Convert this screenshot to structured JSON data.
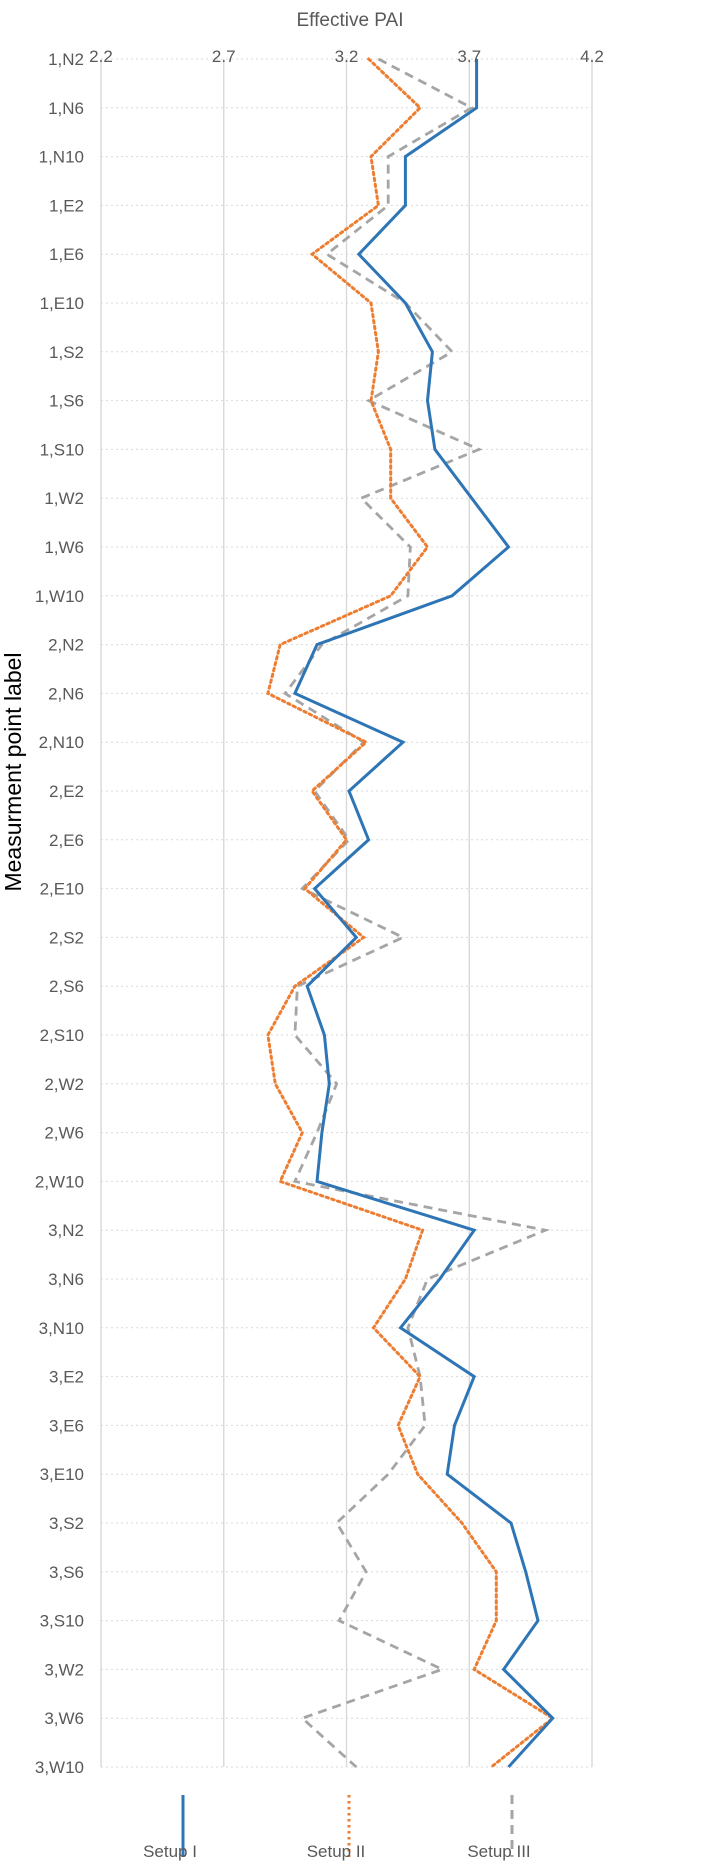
{
  "chart_data": {
    "type": "line",
    "orientation": "vertical-categories",
    "xlabel": "Effective PAI",
    "ylabel": "Measurment point label",
    "xlim": [
      2.2,
      4.2
    ],
    "xticks": [
      "2.2",
      "2.7",
      "3.2",
      "3.7",
      "4.2"
    ],
    "x_axis_position": "top",
    "grid": true,
    "legend_position": "bottom",
    "categories": [
      "1,N2",
      "1,N6",
      "1,N10",
      "1,E2",
      "1,E6",
      "1,E10",
      "1,S2",
      "1,S6",
      "1,S10",
      "1,W2",
      "1,W6",
      "1,W10",
      "2,N2",
      "2,N6",
      "2,N10",
      "2,E2",
      "2,E6",
      "2,E10",
      "2,S2",
      "2,S6",
      "2,S10",
      "2,W2",
      "2,W6",
      "2,W10",
      "3,N2",
      "3,N6",
      "3,N10",
      "3,E2",
      "3,E6",
      "3,E10",
      "3,S2",
      "3,S6",
      "3,S10",
      "3,W2",
      "3,W6",
      "3,W10"
    ],
    "series": [
      {
        "name": "Setup I",
        "color": "#2e75b6",
        "style": "solid",
        "values": [
          3.73,
          3.73,
          3.44,
          3.44,
          3.25,
          3.44,
          3.55,
          3.53,
          3.56,
          3.71,
          3.86,
          3.63,
          3.08,
          2.99,
          3.43,
          3.21,
          3.29,
          3.07,
          3.24,
          3.04,
          3.11,
          3.13,
          3.1,
          3.08,
          3.72,
          3.58,
          3.42,
          3.72,
          3.64,
          3.61,
          3.87,
          3.93,
          3.98,
          3.84,
          4.04,
          3.86
        ]
      },
      {
        "name": "Setup II",
        "color": "#ed7d31",
        "style": "dotted",
        "values": [
          3.29,
          3.5,
          3.3,
          3.33,
          3.06,
          3.3,
          3.33,
          3.3,
          3.38,
          3.38,
          3.53,
          3.38,
          2.93,
          2.88,
          3.28,
          3.06,
          3.2,
          3.03,
          3.27,
          2.99,
          2.88,
          2.91,
          3.02,
          2.93,
          3.51,
          3.44,
          3.31,
          3.5,
          3.41,
          3.49,
          3.67,
          3.81,
          3.81,
          3.72,
          4.04,
          3.79
        ]
      },
      {
        "name": "Setup III",
        "color": "#a5a5a5",
        "style": "dashed",
        "values": [
          3.33,
          3.71,
          3.37,
          3.37,
          3.12,
          3.44,
          3.63,
          3.29,
          3.74,
          3.26,
          3.46,
          3.45,
          3.1,
          2.95,
          3.27,
          3.07,
          3.21,
          3.02,
          3.43,
          3.0,
          2.99,
          3.16,
          3.08,
          2.99,
          4.01,
          3.53,
          3.45,
          3.5,
          3.52,
          3.37,
          3.16,
          3.28,
          3.17,
          3.59,
          3.02,
          3.24
        ]
      }
    ]
  }
}
